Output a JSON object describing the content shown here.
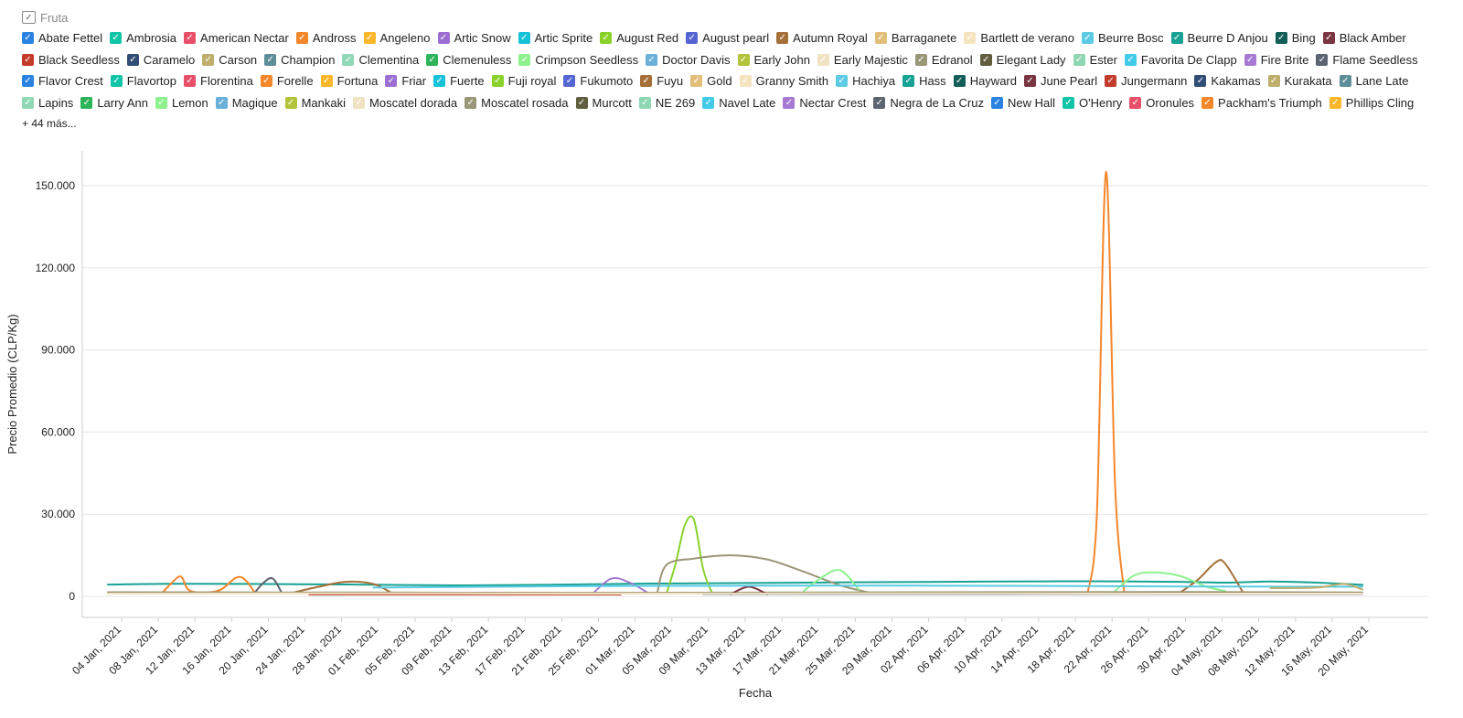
{
  "legend": {
    "title": "Fruta",
    "more_label": "+ 44 más...",
    "items": [
      {
        "name": "Abate Fettel",
        "color": "#2a83e0"
      },
      {
        "name": "Ambrosia",
        "color": "#11c5a6"
      },
      {
        "name": "American Nectar",
        "color": "#e8506a"
      },
      {
        "name": "Andross",
        "color": "#f5872b"
      },
      {
        "name": "Angeleno",
        "color": "#fbb62a"
      },
      {
        "name": "Artic Snow",
        "color": "#9b6fd1"
      },
      {
        "name": "Artic Sprite",
        "color": "#17c2d8"
      },
      {
        "name": "August Red",
        "color": "#8ad22b"
      },
      {
        "name": "August pearl",
        "color": "#5566d2"
      },
      {
        "name": "Autumn Royal",
        "color": "#a56f38"
      },
      {
        "name": "Barraganete",
        "color": "#e3be79"
      },
      {
        "name": "Bartlett de verano",
        "color": "#f4e3bf"
      },
      {
        "name": "Beurre Bosc",
        "color": "#5ccbe3"
      },
      {
        "name": "Beurre D Anjou",
        "color": "#17a293"
      },
      {
        "name": "Bing",
        "color": "#125e58"
      },
      {
        "name": "Black Amber",
        "color": "#7a3542"
      },
      {
        "name": "Black Seedless",
        "color": "#c33b2b"
      },
      {
        "name": "Caramelo",
        "color": "#324d76"
      },
      {
        "name": "Carson",
        "color": "#bfae6c"
      },
      {
        "name": "Champion",
        "color": "#5c8d99"
      },
      {
        "name": "Clementina",
        "color": "#91d8b6"
      },
      {
        "name": "Clemenuless",
        "color": "#2db45b"
      },
      {
        "name": "Crimpson Seedless",
        "color": "#8df28e"
      },
      {
        "name": "Doctor Davis",
        "color": "#6bb0d8"
      },
      {
        "name": "Early John",
        "color": "#b3c43a"
      },
      {
        "name": "Early Majestic",
        "color": "#f0e2c2"
      },
      {
        "name": "Edranol",
        "color": "#9a9678"
      },
      {
        "name": "Elegant Lady",
        "color": "#615e3f"
      },
      {
        "name": "Ester",
        "color": "#8fd7b4"
      },
      {
        "name": "Favorita De Clapp",
        "color": "#41cbe8"
      },
      {
        "name": "Fire Brite",
        "color": "#a67ad2"
      },
      {
        "name": "Flame Seedless",
        "color": "#5b6470"
      },
      {
        "name": "Flavor Crest",
        "color": "#2a83e0"
      },
      {
        "name": "Flavortop",
        "color": "#11c5a6"
      },
      {
        "name": "Florentina",
        "color": "#e8506a"
      },
      {
        "name": "Forelle",
        "color": "#f5872b"
      },
      {
        "name": "Fortuna",
        "color": "#fbb62a"
      },
      {
        "name": "Friar",
        "color": "#9b6fd1"
      },
      {
        "name": "Fuerte",
        "color": "#17c2d8"
      },
      {
        "name": "Fuji royal",
        "color": "#8ad22b"
      },
      {
        "name": "Fukumoto",
        "color": "#5566d2"
      },
      {
        "name": "Fuyu",
        "color": "#a56f38"
      },
      {
        "name": "Gold",
        "color": "#e3be79"
      },
      {
        "name": "Granny Smith",
        "color": "#f4e3bf"
      },
      {
        "name": "Hachiya",
        "color": "#5ccbe3"
      },
      {
        "name": "Hass",
        "color": "#17a293"
      },
      {
        "name": "Hayward",
        "color": "#125e58"
      },
      {
        "name": "June Pearl",
        "color": "#7a3542"
      },
      {
        "name": "Jungermann",
        "color": "#c33b2b"
      },
      {
        "name": "Kakamas",
        "color": "#324d76"
      },
      {
        "name": "Kurakata",
        "color": "#bfae6c"
      },
      {
        "name": "Lane Late",
        "color": "#5c8d99"
      },
      {
        "name": "Lapins",
        "color": "#91d8b6"
      },
      {
        "name": "Larry Ann",
        "color": "#2db45b"
      },
      {
        "name": "Lemon",
        "color": "#8df28e"
      },
      {
        "name": "Magique",
        "color": "#6bb0d8"
      },
      {
        "name": "Mankaki",
        "color": "#b3c43a"
      },
      {
        "name": "Moscatel dorada",
        "color": "#f0e2c2"
      },
      {
        "name": "Moscatel rosada",
        "color": "#9a9678"
      },
      {
        "name": "Murcott",
        "color": "#615e3f"
      },
      {
        "name": "NE 269",
        "color": "#8fd7b4"
      },
      {
        "name": "Navel Late",
        "color": "#41cbe8"
      },
      {
        "name": "Nectar Crest",
        "color": "#a67ad2"
      },
      {
        "name": "Negra de La Cruz",
        "color": "#5b6470"
      },
      {
        "name": "New Hall",
        "color": "#2a83e0"
      },
      {
        "name": "O'Henry",
        "color": "#11c5a6"
      },
      {
        "name": "Oronules",
        "color": "#e8506a"
      },
      {
        "name": "Packham's Triumph",
        "color": "#f5872b"
      },
      {
        "name": "Phillips Cling",
        "color": "#fbb62a"
      }
    ]
  },
  "chart_data": {
    "type": "line",
    "xlabel": "Fecha",
    "ylabel": "Precio Promedio (CLP/Kg)",
    "ylim": [
      0,
      155000
    ],
    "yticks": [
      0,
      30000,
      60000,
      90000,
      120000,
      150000
    ],
    "ytick_labels": [
      "0",
      "30.000",
      "60.000",
      "90.000",
      "120.000",
      "150.000"
    ],
    "x_tick_labels": [
      "04 Jan, 2021",
      "08 Jan, 2021",
      "12 Jan, 2021",
      "16 Jan, 2021",
      "20 Jan, 2021",
      "24 Jan, 2021",
      "28 Jan, 2021",
      "01 Feb, 2021",
      "05 Feb, 2021",
      "09 Feb, 2021",
      "13 Feb, 2021",
      "17 Feb, 2021",
      "21 Feb, 2021",
      "25 Feb, 2021",
      "01 Mar, 2021",
      "05 Mar, 2021",
      "09 Mar, 2021",
      "13 Mar, 2021",
      "17 Mar, 2021",
      "21 Mar, 2021",
      "25 Mar, 2021",
      "29 Mar, 2021",
      "02 Apr, 2021",
      "06 Apr, 2021",
      "10 Apr, 2021",
      "14 Apr, 2021",
      "18 Apr, 2021",
      "22 Apr, 2021",
      "26 Apr, 2021",
      "30 Apr, 2021",
      "04 May, 2021",
      "08 May, 2021",
      "12 May, 2021",
      "16 May, 2021",
      "20 May, 2021"
    ],
    "x_range": [
      "2021-01-01",
      "2021-05-21"
    ],
    "grid": true,
    "legend_position": "top",
    "series": [
      {
        "name": "Hass",
        "color": "#17a293",
        "x": [
          "2021-01-03",
          "2021-01-10",
          "2021-01-20",
          "2021-01-30",
          "2021-02-10",
          "2021-02-20",
          "2021-03-01",
          "2021-03-10",
          "2021-03-20",
          "2021-03-30",
          "2021-04-10",
          "2021-04-20",
          "2021-04-30",
          "2021-05-05",
          "2021-05-10",
          "2021-05-15",
          "2021-05-20"
        ],
        "y": [
          4300,
          4600,
          4500,
          4300,
          4000,
          4200,
          4600,
          4800,
          5000,
          5200,
          5400,
          5500,
          5300,
          5000,
          5400,
          5000,
          4200
        ]
      },
      {
        "name": "Andross",
        "color": "#f5872b",
        "x": [
          "2021-04-20",
          "2021-04-21",
          "2021-04-22",
          "2021-04-23",
          "2021-04-24"
        ],
        "y": [
          1200,
          30000,
          155000,
          40000,
          1200
        ]
      },
      {
        "name": "August Red",
        "color": "#8ad22b",
        "x": [
          "2021-03-05",
          "2021-03-06",
          "2021-03-07",
          "2021-03-08",
          "2021-03-09",
          "2021-03-10"
        ],
        "y": [
          1000,
          12000,
          26000,
          28000,
          10000,
          1000
        ]
      },
      {
        "name": "Edranol",
        "color": "#9a9678",
        "x": [
          "2021-03-04",
          "2021-03-05",
          "2021-03-08",
          "2021-03-12",
          "2021-03-16",
          "2021-03-20",
          "2021-03-24",
          "2021-03-27"
        ],
        "y": [
          1500,
          11500,
          13800,
          15000,
          13500,
          9000,
          4000,
          1500
        ]
      },
      {
        "name": "Fuyu",
        "color": "#a56f38",
        "x": [
          "2021-04-30",
          "2021-05-02",
          "2021-05-04",
          "2021-05-05",
          "2021-05-07"
        ],
        "y": [
          1200,
          6000,
          12500,
          12000,
          1200
        ]
      },
      {
        "name": "Autumn Royal",
        "color": "#a56f38",
        "x": [
          "2021-01-23",
          "2021-01-26",
          "2021-01-29",
          "2021-02-01",
          "2021-02-03"
        ],
        "y": [
          1200,
          3500,
          5300,
          4500,
          1200
        ]
      },
      {
        "name": "Lemon",
        "color": "#8df28e",
        "x": [
          "2021-04-23",
          "2021-04-25",
          "2021-04-27",
          "2021-04-30",
          "2021-05-03",
          "2021-05-05"
        ],
        "y": [
          2000,
          7500,
          8800,
          7500,
          3500,
          2000
        ]
      },
      {
        "name": "Crimpson Seedless",
        "color": "#8df28e",
        "x": [
          "2021-03-20",
          "2021-03-22",
          "2021-03-24",
          "2021-03-26"
        ],
        "y": [
          2000,
          7000,
          9500,
          2500
        ]
      },
      {
        "name": "Forelle",
        "color": "#f5872b",
        "x": [
          "2021-01-09",
          "2021-01-10",
          "2021-01-11",
          "2021-01-12",
          "2021-01-15",
          "2021-01-17",
          "2021-01-18",
          "2021-01-19"
        ],
        "y": [
          1500,
          5000,
          7200,
          2000,
          2000,
          6800,
          6000,
          1500
        ]
      },
      {
        "name": "Flame Seedless",
        "color": "#5b6470",
        "x": [
          "2021-01-19",
          "2021-01-20",
          "2021-01-21",
          "2021-01-22"
        ],
        "y": [
          1200,
          5000,
          6500,
          1200
        ]
      },
      {
        "name": "Fire Brite",
        "color": "#a67ad2",
        "x": [
          "2021-02-25",
          "2021-02-27",
          "2021-03-01",
          "2021-03-03"
        ],
        "y": [
          1200,
          6500,
          5000,
          1200
        ]
      },
      {
        "name": "Moscatel rosada",
        "color": "#9a9678",
        "x": [
          "2021-01-03",
          "2021-02-01",
          "2021-03-01",
          "2021-04-01",
          "2021-05-01",
          "2021-05-20"
        ],
        "y": [
          1500,
          1400,
          1300,
          1500,
          1600,
          1400
        ]
      },
      {
        "name": "Black Amber",
        "color": "#7a3542",
        "x": [
          "2021-03-12",
          "2021-03-14",
          "2021-03-16"
        ],
        "y": [
          800,
          3500,
          800
        ]
      },
      {
        "name": "Black Seedless",
        "color": "#c33b2b",
        "x": [
          "2021-01-25",
          "2021-02-15",
          "2021-02-28"
        ],
        "y": [
          700,
          700,
          700
        ]
      },
      {
        "name": "Caramelo",
        "color": "#324d76",
        "x": [
          "2021-03-09",
          "2021-04-01",
          "2021-05-01",
          "2021-05-20"
        ],
        "y": [
          900,
          900,
          900,
          900
        ]
      },
      {
        "name": "Bartlett de verano",
        "color": "#f4e3bf",
        "x": [
          "2021-01-03",
          "2021-02-01",
          "2021-03-01",
          "2021-04-01",
          "2021-05-01",
          "2021-05-20"
        ],
        "y": [
          1000,
          1100,
          1000,
          1100,
          1000,
          1000
        ]
      },
      {
        "name": "Beurre Bosc",
        "color": "#5ccbe3",
        "x": [
          "2021-02-01",
          "2021-03-01",
          "2021-04-01",
          "2021-05-01",
          "2021-05-20"
        ],
        "y": [
          3200,
          3800,
          3900,
          3600,
          3500
        ]
      },
      {
        "name": "Kurakata",
        "color": "#bfae6c",
        "x": [
          "2021-05-10",
          "2021-05-15",
          "2021-05-18",
          "2021-05-20"
        ],
        "y": [
          3000,
          3200,
          4500,
          2500
        ]
      }
    ]
  }
}
